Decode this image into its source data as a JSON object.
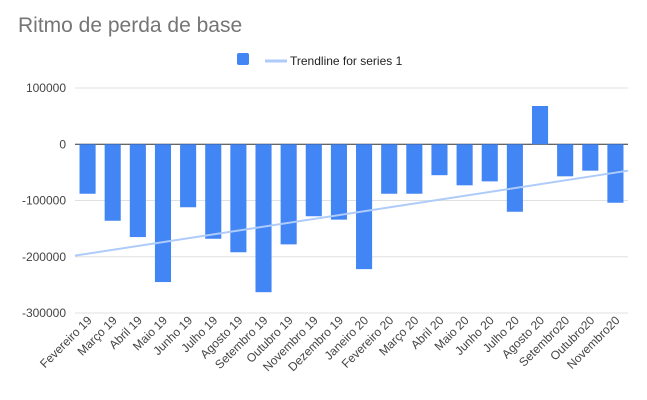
{
  "chart_data": {
    "type": "bar",
    "title": "Ritmo de perda de base",
    "xlabel": "",
    "ylabel": "",
    "categories": [
      "Fevereiro 19",
      "Março 19",
      "Abril 19",
      "Maio 19",
      "Junho 19",
      "Julho 19",
      "Agosto 19",
      "Setembro 19",
      "Outubro 19",
      "Novembro 19",
      "Dezembro 19",
      "Janeiro 20",
      "Fevereiro 20",
      "Março 20",
      "Abril 20",
      "Maio 20",
      "Junho 20",
      "Julho 20",
      "Agosto 20",
      "Setembro20",
      "Outubro20",
      "Novembro20"
    ],
    "series": [
      {
        "name": "",
        "color": "#4285f4",
        "values": [
          -88000,
          -136000,
          -165000,
          -245000,
          -112000,
          -168000,
          -192000,
          -263000,
          -178000,
          -128000,
          -134000,
          -222000,
          -88000,
          -88000,
          -55000,
          -73000,
          -66000,
          -120000,
          68000,
          -57000,
          -47000,
          -104000
        ]
      }
    ],
    "trendline": {
      "name": "Trendline for series 1",
      "color": "#aecbfa",
      "start": -198000,
      "end": -47000
    },
    "ylim": [
      -300000,
      100000
    ],
    "yticks": [
      100000,
      0,
      -100000,
      -200000,
      -300000
    ],
    "ytick_labels": [
      "100000",
      "0",
      "-100000",
      "-200000",
      "-300000"
    ],
    "grid": true,
    "legend_position": "top"
  }
}
